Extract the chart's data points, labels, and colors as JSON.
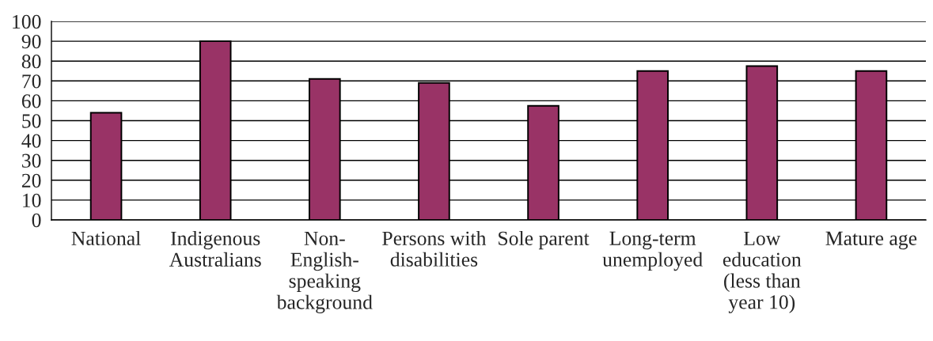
{
  "chart_data": {
    "type": "bar",
    "categories": [
      "National",
      "Indigenous Australians",
      "Non-English-speaking background",
      "Persons with disabilities",
      "Sole parent",
      "Long-term unemployed",
      "Low education (less than year 10)",
      "Mature age"
    ],
    "values": [
      54,
      90,
      71,
      69,
      57.5,
      75,
      77.5,
      75
    ],
    "color": "#993366",
    "ylim": [
      0,
      100
    ],
    "yticks": [
      0,
      10,
      20,
      30,
      40,
      50,
      60,
      70,
      80,
      90,
      100
    ],
    "grid": "y"
  }
}
